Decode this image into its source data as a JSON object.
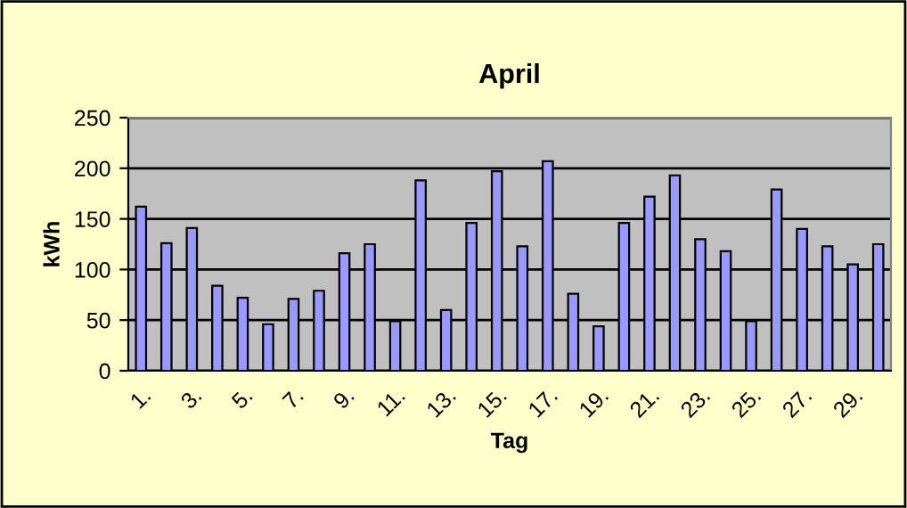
{
  "chart_data": {
    "type": "bar",
    "title": "April",
    "xlabel": "Tag",
    "ylabel": "kWh",
    "categories": [
      "1.",
      null,
      "3.",
      null,
      "5.",
      null,
      "7.",
      null,
      "9.",
      null,
      "11.",
      null,
      "13.",
      null,
      "15.",
      null,
      "17.",
      null,
      "19.",
      null,
      "21.",
      null,
      "23.",
      null,
      "25.",
      null,
      "27.",
      null,
      "29.",
      null
    ],
    "values": [
      162,
      126,
      141,
      84,
      72,
      46,
      71,
      79,
      116,
      125,
      49,
      188,
      60,
      146,
      197,
      123,
      207,
      76,
      44,
      146,
      172,
      193,
      130,
      118,
      49,
      179,
      140,
      123,
      105,
      125
    ],
    "color": "#9999ff",
    "ylim": [
      0,
      250
    ],
    "yticks": [
      0,
      50,
      100,
      150,
      200,
      250
    ],
    "grid": "y",
    "legend": false
  }
}
